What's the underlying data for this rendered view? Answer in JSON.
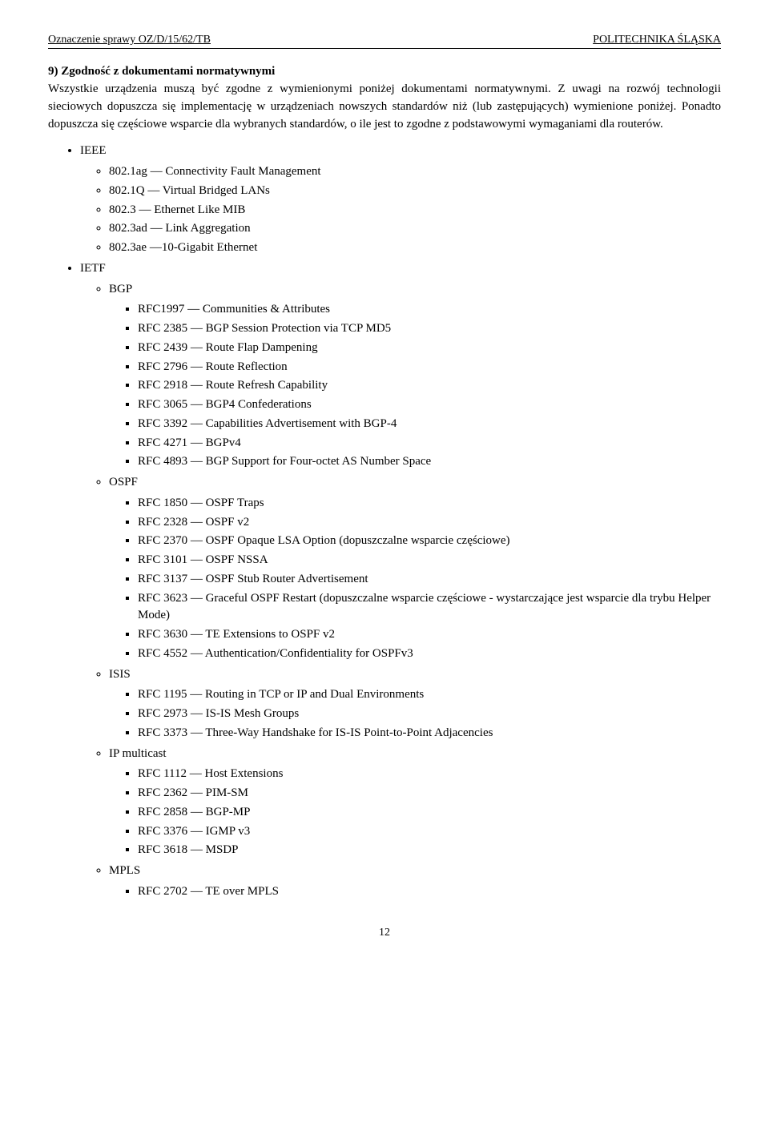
{
  "header": {
    "left": "Oznaczenie sprawy OZ/D/15/62/TB",
    "right": "POLITECHNIKA ŚLĄSKA"
  },
  "section": {
    "number": "9)",
    "title": "Zgodność z dokumentami normatywnymi"
  },
  "paragraphs": {
    "p1": "Wszystkie urządzenia muszą być zgodne z wymienionymi poniżej dokumentami normatywnymi. Z uwagi na rozwój technologii sieciowych dopuszcza się implementację w urządzeniach nowszych standardów niż (lub zastępujących) wymienione poniżej. Ponadto dopuszcza się częściowe wsparcie dla wybranych standardów, o ile jest to zgodne z podstawowymi wymaganiami dla routerów."
  },
  "ieee": {
    "label": "IEEE",
    "items": [
      "802.1ag — Connectivity Fault Management",
      "802.1Q — Virtual Bridged LANs",
      "802.3 — Ethernet Like MIB",
      "802.3ad — Link Aggregation",
      "802.3ae —10-Gigabit Ethernet"
    ]
  },
  "ietf": {
    "label": "IETF",
    "groups": [
      {
        "name": "BGP",
        "items": [
          "RFC1997 — Communities & Attributes",
          "RFC 2385 — BGP Session Protection via TCP MD5",
          "RFC 2439 — Route Flap Dampening",
          "RFC 2796 — Route Reflection",
          "RFC 2918 — Route Refresh Capability",
          "RFC 3065 — BGP4 Confederations",
          "RFC 3392 — Capabilities Advertisement with BGP-4",
          "RFC 4271 — BGPv4",
          "RFC 4893 — BGP Support for Four-octet AS Number Space"
        ]
      },
      {
        "name": "OSPF",
        "items": [
          "RFC 1850 — OSPF Traps",
          "RFC 2328 — OSPF v2",
          "RFC 2370 — OSPF Opaque LSA Option (dopuszczalne wsparcie częściowe)",
          "RFC 3101 — OSPF NSSA",
          "RFC 3137 — OSPF Stub Router Advertisement",
          "RFC 3623 — Graceful OSPF Restart (dopuszczalne wsparcie częściowe - wystarczające jest wsparcie dla trybu Helper Mode)",
          "RFC 3630 — TE Extensions to OSPF v2",
          "RFC 4552 — Authentication/Confidentiality for OSPFv3"
        ]
      },
      {
        "name": "ISIS",
        "items": [
          "RFC 1195 — Routing in TCP or IP and Dual Environments",
          "RFC 2973 — IS-IS Mesh Groups",
          "RFC 3373 — Three-Way Handshake for IS-IS Point-to-Point Adjacencies"
        ]
      },
      {
        "name": "IP multicast",
        "items": [
          "RFC 1112 — Host Extensions",
          "RFC 2362 — PIM-SM",
          "RFC 2858 — BGP-MP",
          "RFC 3376 —  IGMP v3",
          "RFC 3618 — MSDP"
        ]
      },
      {
        "name": "MPLS",
        "items": [
          "RFC 2702 — TE over MPLS"
        ]
      }
    ]
  },
  "pageNumber": "12"
}
